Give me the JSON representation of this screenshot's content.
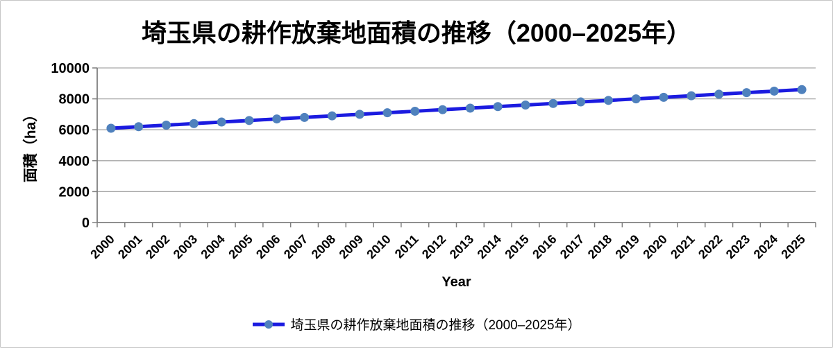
{
  "title": "埼玉県の耕作放棄地面積の推移（2000–2025年）",
  "y_axis": {
    "title": "面積（ha）",
    "ticks": [
      0,
      2000,
      4000,
      6000,
      8000,
      10000
    ],
    "tick_labels": [
      "0",
      "2000",
      "4000",
      "6000",
      "8000",
      "10000"
    ]
  },
  "x_axis": {
    "title": "Year",
    "tick_labels": [
      "2000",
      "2001",
      "2002",
      "2003",
      "2004",
      "2005",
      "2006",
      "2007",
      "2008",
      "2009",
      "2010",
      "2011",
      "2012",
      "2013",
      "2014",
      "2015",
      "2016",
      "2017",
      "2018",
      "2019",
      "2020",
      "2021",
      "2022",
      "2023",
      "2024",
      "2025"
    ]
  },
  "legend": {
    "label": "埼玉県の耕作放棄地面積の推移（2000–2025年）",
    "position": "bottom-center"
  },
  "colors": {
    "line": "#1b1be0",
    "marker": "#4f81bd",
    "gridline": "#a6a6a6",
    "axis": "#7f7f7f",
    "text": "#000000",
    "background": "#ffffff",
    "frame_border": "#c6c6c6"
  },
  "chart_data": {
    "type": "line",
    "title": "埼玉県の耕作放棄地面積の推移（2000–2025年）",
    "xlabel": "Year",
    "ylabel": "面積（ha）",
    "x": [
      2000,
      2001,
      2002,
      2003,
      2004,
      2005,
      2006,
      2007,
      2008,
      2009,
      2010,
      2011,
      2012,
      2013,
      2014,
      2015,
      2016,
      2017,
      2018,
      2019,
      2020,
      2021,
      2022,
      2023,
      2024,
      2025
    ],
    "series": [
      {
        "name": "埼玉県の耕作放棄地面積の推移（2000–2025年）",
        "values": [
          6100,
          6200,
          6300,
          6400,
          6500,
          6600,
          6700,
          6800,
          6900,
          7000,
          7100,
          7200,
          7300,
          7400,
          7500,
          7600,
          7700,
          7800,
          7900,
          8000,
          8100,
          8200,
          8300,
          8400,
          8500,
          8600
        ]
      }
    ],
    "ylim": [
      0,
      10000
    ],
    "grid": "horizontal",
    "marker": "circle",
    "legend_position": "bottom-center"
  }
}
